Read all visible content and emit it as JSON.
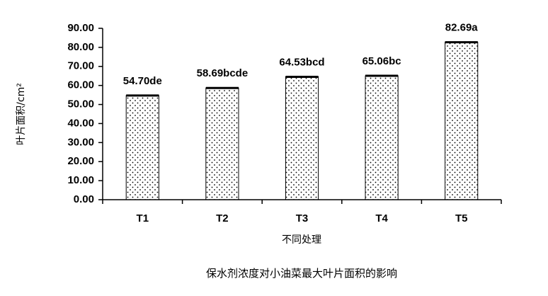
{
  "chart_data": {
    "type": "bar",
    "categories": [
      "T1",
      "T2",
      "T3",
      "T4",
      "T5"
    ],
    "values": [
      54.7,
      58.69,
      64.53,
      65.06,
      82.69
    ],
    "value_labels": [
      "54.70de",
      "58.69bcde",
      "64.53bcd",
      "65.06bc",
      "82.69a"
    ],
    "color": "#000000",
    "ylim": [
      0,
      90
    ],
    "yticks": [
      {
        "value": 0,
        "label": "0.00"
      },
      {
        "value": 10,
        "label": "10.00"
      },
      {
        "value": 20,
        "label": "20.00"
      },
      {
        "value": 30,
        "label": "30.00"
      },
      {
        "value": 40,
        "label": "40.00"
      },
      {
        "value": 50,
        "label": "50.00"
      },
      {
        "value": 60,
        "label": "60.00"
      },
      {
        "value": 70,
        "label": "70.00"
      },
      {
        "value": 80,
        "label": "80.00"
      },
      {
        "value": 90,
        "label": "90.00"
      }
    ],
    "x_label": "不同处理",
    "y_label": "叶片面积/cm²",
    "caption": "保水剂浓度对小油菜最大叶片面积的影响",
    "grid": false
  }
}
